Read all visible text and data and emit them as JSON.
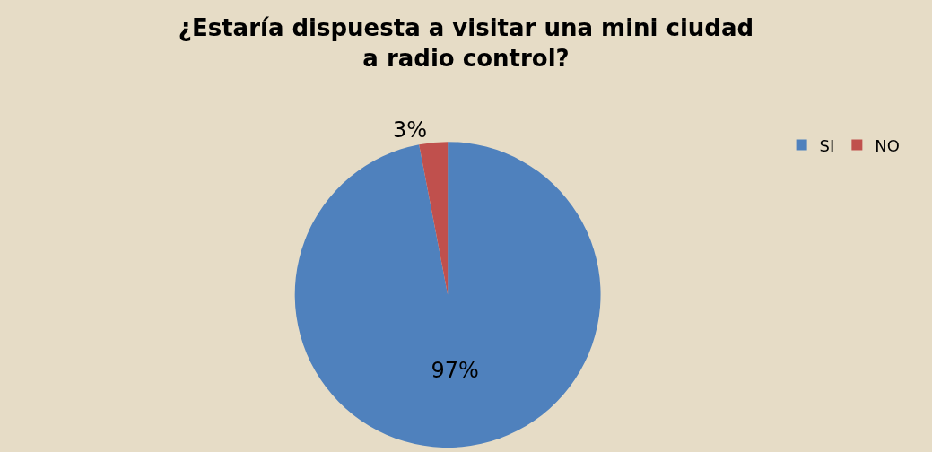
{
  "chart_data": {
    "type": "pie",
    "title": "¿Estaría dispuesta a visitar una mini ciudad\na radio control?",
    "categories": [
      "SI",
      "NO"
    ],
    "values": [
      97,
      3
    ],
    "colors": [
      "#4f81bd",
      "#c0504d"
    ],
    "value_labels": [
      "97%",
      "3%"
    ],
    "legend": "top right"
  }
}
